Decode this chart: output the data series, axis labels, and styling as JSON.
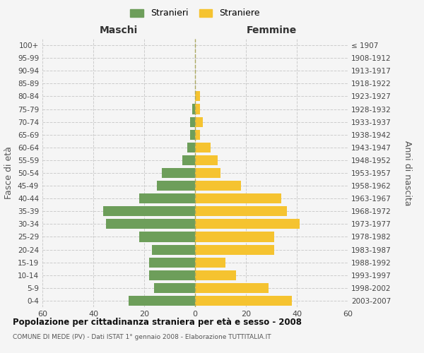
{
  "age_groups": [
    "0-4",
    "5-9",
    "10-14",
    "15-19",
    "20-24",
    "25-29",
    "30-34",
    "35-39",
    "40-44",
    "45-49",
    "50-54",
    "55-59",
    "60-64",
    "65-69",
    "70-74",
    "75-79",
    "80-84",
    "85-89",
    "90-94",
    "95-99",
    "100+"
  ],
  "birth_years": [
    "2003-2007",
    "1998-2002",
    "1993-1997",
    "1988-1992",
    "1983-1987",
    "1978-1982",
    "1973-1977",
    "1968-1972",
    "1963-1967",
    "1958-1962",
    "1953-1957",
    "1948-1952",
    "1943-1947",
    "1938-1942",
    "1933-1937",
    "1928-1932",
    "1923-1927",
    "1918-1922",
    "1913-1917",
    "1908-1912",
    "≤ 1907"
  ],
  "males": [
    26,
    16,
    18,
    18,
    17,
    22,
    35,
    36,
    22,
    15,
    13,
    5,
    3,
    2,
    2,
    1,
    0,
    0,
    0,
    0,
    0
  ],
  "females": [
    38,
    29,
    16,
    12,
    31,
    31,
    41,
    36,
    34,
    18,
    10,
    9,
    6,
    2,
    3,
    2,
    2,
    0,
    0,
    0,
    0
  ],
  "male_color": "#6d9e5a",
  "female_color": "#f5c330",
  "background_color": "#f5f5f5",
  "grid_color": "#cccccc",
  "title": "Popolazione per cittadinanza straniera per età e sesso - 2008",
  "subtitle": "COMUNE DI MEDE (PV) - Dati ISTAT 1° gennaio 2008 - Elaborazione TUTTITALIA.IT",
  "xlabel_left": "Maschi",
  "xlabel_right": "Femmine",
  "ylabel_left": "Fasce di età",
  "ylabel_right": "Anni di nascita",
  "xlim": 60,
  "xticks": [
    -60,
    -40,
    -20,
    0,
    20,
    40,
    60
  ],
  "xtick_labels": [
    "60",
    "40",
    "20",
    "0",
    "20",
    "40",
    "60"
  ],
  "legend_stranieri": "Stranieri",
  "legend_straniere": "Straniere"
}
